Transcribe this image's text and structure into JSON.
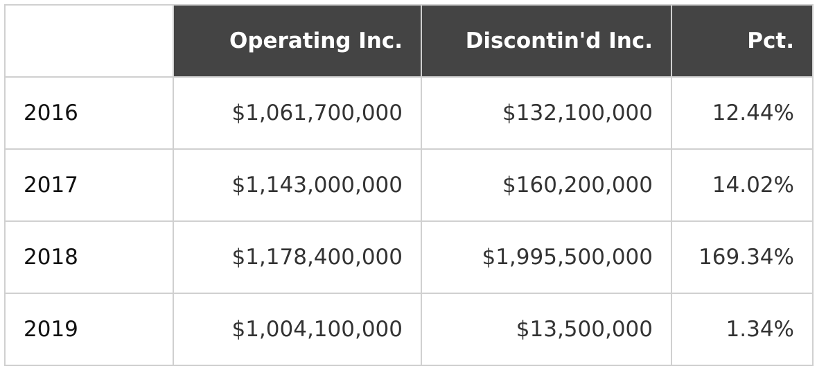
{
  "table": {
    "header": [
      "Operating Inc.",
      "Discontin'd Inc.",
      "Pct."
    ],
    "rows": [
      [
        "2016",
        "$1,061,700,000",
        "$132,100,000",
        "12.44%"
      ],
      [
        "2017",
        "$1,143,000,000",
        "$160,200,000",
        "14.02%"
      ],
      [
        "2018",
        "$1,178,400,000",
        "$1,995,500,000",
        "169.34%"
      ],
      [
        "2019",
        "$1,004,100,000",
        "$13,500,000",
        "1.34%"
      ]
    ]
  }
}
